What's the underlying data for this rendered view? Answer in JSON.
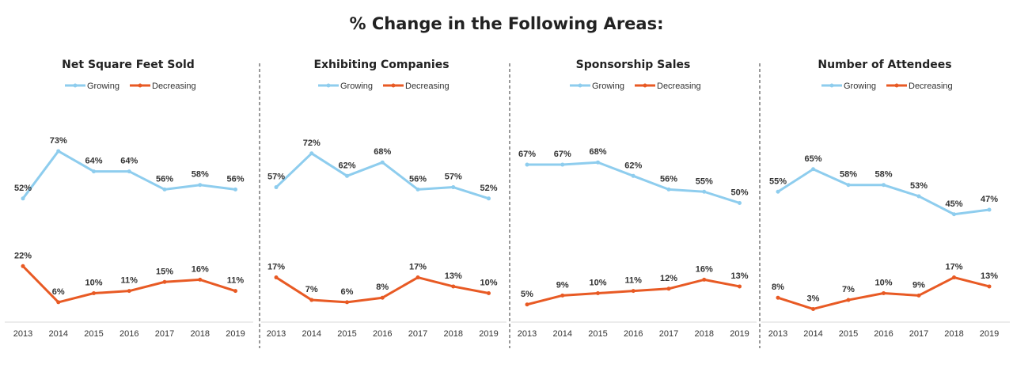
{
  "title": "% Change in the Following Areas:",
  "colors": {
    "growing": "#8ECDEE",
    "decreasing": "#E85A24",
    "axis": "#d9d9d9",
    "divider": "#333333"
  },
  "chart_data": [
    {
      "type": "line",
      "title": "Net Square Feet Sold",
      "categories": [
        "2013",
        "2014",
        "2015",
        "2016",
        "2017",
        "2018",
        "2019"
      ],
      "series": [
        {
          "name": "Growing",
          "values": [
            52,
            73,
            64,
            64,
            56,
            58,
            56
          ],
          "labels": [
            "52%",
            "73%",
            "64%",
            "64%",
            "56%",
            "58%",
            "56%"
          ]
        },
        {
          "name": "Decreasing",
          "values": [
            22,
            6,
            10,
            11,
            15,
            16,
            11
          ],
          "labels": [
            "22%",
            "6%",
            "10%",
            "11%",
            "15%",
            "16%",
            "11%"
          ]
        }
      ],
      "legend": "top-center"
    },
    {
      "type": "line",
      "title": "Exhibiting Companies",
      "categories": [
        "2013",
        "2014",
        "2015",
        "2016",
        "2017",
        "2018",
        "2019"
      ],
      "series": [
        {
          "name": "Growing",
          "values": [
            57,
            72,
            62,
            68,
            56,
            57,
            52
          ],
          "labels": [
            "57%",
            "72%",
            "62%",
            "68%",
            "56%",
            "57%",
            "52%"
          ]
        },
        {
          "name": "Decreasing",
          "values": [
            17,
            7,
            6,
            8,
            17,
            13,
            10
          ],
          "labels": [
            "17%",
            "7%",
            "6%",
            "8%",
            "17%",
            "13%",
            "10%"
          ]
        }
      ],
      "legend": "top-center"
    },
    {
      "type": "line",
      "title": "Sponsorship Sales",
      "categories": [
        "2013",
        "2014",
        "2015",
        "2016",
        "2017",
        "2018",
        "2019"
      ],
      "series": [
        {
          "name": "Growing",
          "values": [
            67,
            67,
            68,
            62,
            56,
            55,
            50
          ],
          "labels": [
            "67%",
            "67%",
            "68%",
            "62%",
            "56%",
            "55%",
            "50%"
          ]
        },
        {
          "name": "Decreasing",
          "values": [
            5,
            9,
            10,
            11,
            12,
            16,
            13
          ],
          "labels": [
            "5%",
            "9%",
            "10%",
            "11%",
            "12%",
            "16%",
            "13%"
          ]
        }
      ],
      "legend": "top-center"
    },
    {
      "type": "line",
      "title": "Number of Attendees",
      "categories": [
        "2013",
        "2014",
        "2015",
        "2016",
        "2017",
        "2018",
        "2019"
      ],
      "series": [
        {
          "name": "Growing",
          "values": [
            55,
            65,
            58,
            58,
            53,
            45,
            47
          ],
          "labels": [
            "55%",
            "65%",
            "58%",
            "58%",
            "53%",
            "45%",
            "47%"
          ]
        },
        {
          "name": "Decreasing",
          "values": [
            8,
            3,
            7,
            10,
            9,
            17,
            13
          ],
          "labels": [
            "8%",
            "3%",
            "7%",
            "10%",
            "9%",
            "17%",
            "13%"
          ]
        }
      ],
      "legend": "top-center"
    }
  ]
}
